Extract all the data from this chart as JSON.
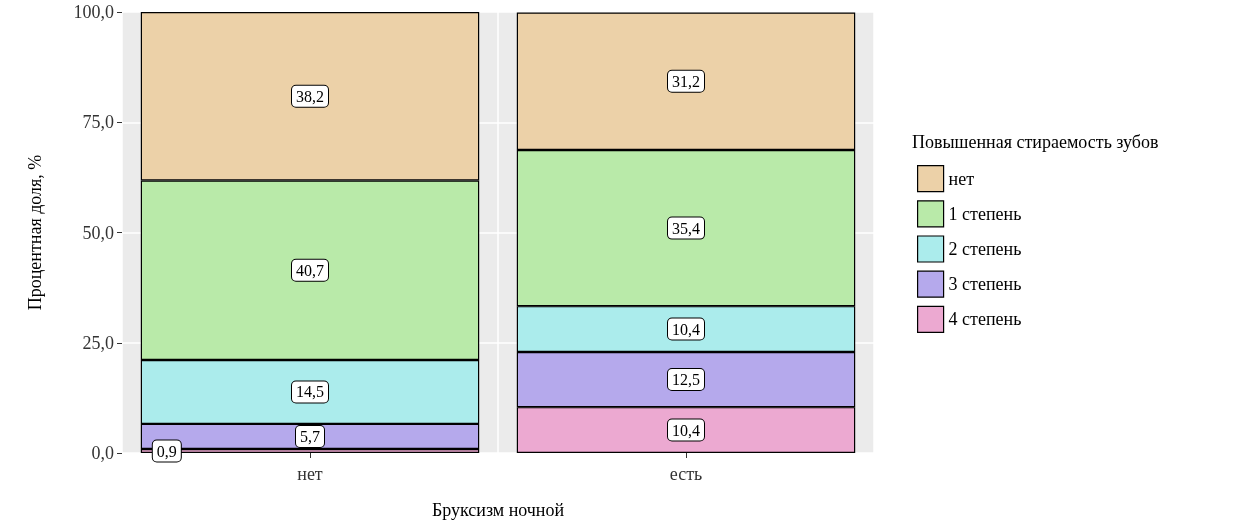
{
  "chart_data": {
    "type": "bar",
    "stacked": true,
    "xlabel": "Бруксизм ночной",
    "ylabel": "Процентная доля, %",
    "legend_title": "Повышенная стираемость зубов",
    "categories": [
      "нет",
      "есть"
    ],
    "series": [
      {
        "name": "4 степень",
        "color": "#eca9d1",
        "values": [
          0.9,
          10.4
        ],
        "value_labels": [
          "0,9",
          "10,4"
        ]
      },
      {
        "name": "3 степень",
        "color": "#b5a9ec",
        "values": [
          5.7,
          12.5
        ],
        "value_labels": [
          "5,7",
          "12,5"
        ]
      },
      {
        "name": "2 степень",
        "color": "#abecec",
        "values": [
          14.5,
          10.4
        ],
        "value_labels": [
          "14,5",
          "10,4"
        ]
      },
      {
        "name": "1 степень",
        "color": "#b9eaa9",
        "values": [
          40.7,
          35.4
        ],
        "value_labels": [
          "40,7",
          "35,4"
        ]
      },
      {
        "name": "нет",
        "color": "#ecd1a8",
        "values": [
          38.2,
          31.2
        ],
        "value_labels": [
          "38,2",
          "31,2"
        ]
      }
    ],
    "ylim": [
      0,
      100
    ],
    "yticks": [
      {
        "value": 0,
        "label": "0,0"
      },
      {
        "value": 25,
        "label": "25,0"
      },
      {
        "value": 50,
        "label": "50,0"
      },
      {
        "value": 75,
        "label": "75,0"
      },
      {
        "value": 100,
        "label": "100,0"
      }
    ],
    "grid": true,
    "legend": "right"
  }
}
